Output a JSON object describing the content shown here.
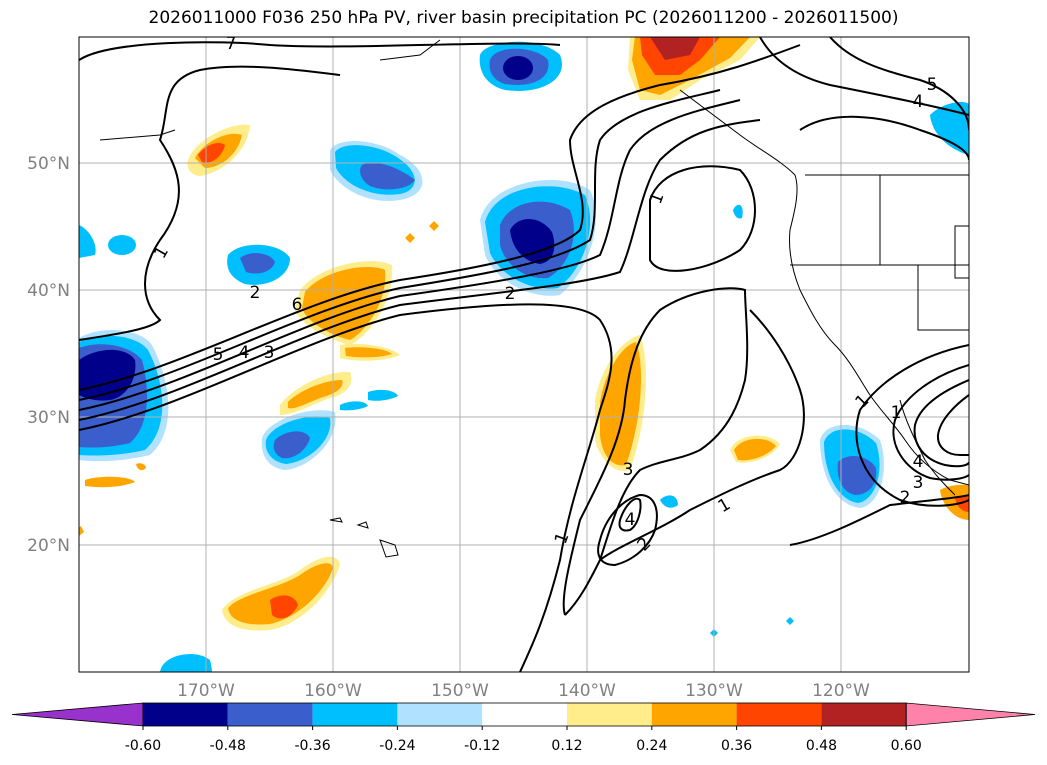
{
  "title": "2026011000 F036 250 hPa PV, river basin precipitation PC (2026011200 - 2026011500)",
  "map": {
    "lon_range": [
      -180,
      -110
    ],
    "lat_range": [
      10,
      60
    ],
    "lat_ticks": [
      "20°N",
      "30°N",
      "40°N",
      "50°N"
    ],
    "lon_ticks": [
      "170°W",
      "160°W",
      "150°W",
      "140°W",
      "130°W",
      "120°W"
    ],
    "contour_labels": [
      "7",
      "1",
      "6",
      "5",
      "4",
      "3",
      "2",
      "1",
      "2",
      "3",
      "4",
      "1",
      "2",
      "1",
      "1",
      "5",
      "4",
      "2",
      "3",
      "4",
      "1"
    ],
    "gridlines": true
  },
  "colorbar": {
    "ticks": [
      "-0.60",
      "-0.48",
      "-0.36",
      "-0.24",
      "-0.12",
      "0.12",
      "0.24",
      "0.36",
      "0.48",
      "0.60"
    ],
    "colors": [
      "#9932cc",
      "#00008b",
      "#3a5fcd",
      "#00bfff",
      "#b0e2ff",
      "#ffffff",
      "#ffec8b",
      "#ffa500",
      "#ff4500",
      "#b22222",
      "#ff82ab"
    ]
  }
}
